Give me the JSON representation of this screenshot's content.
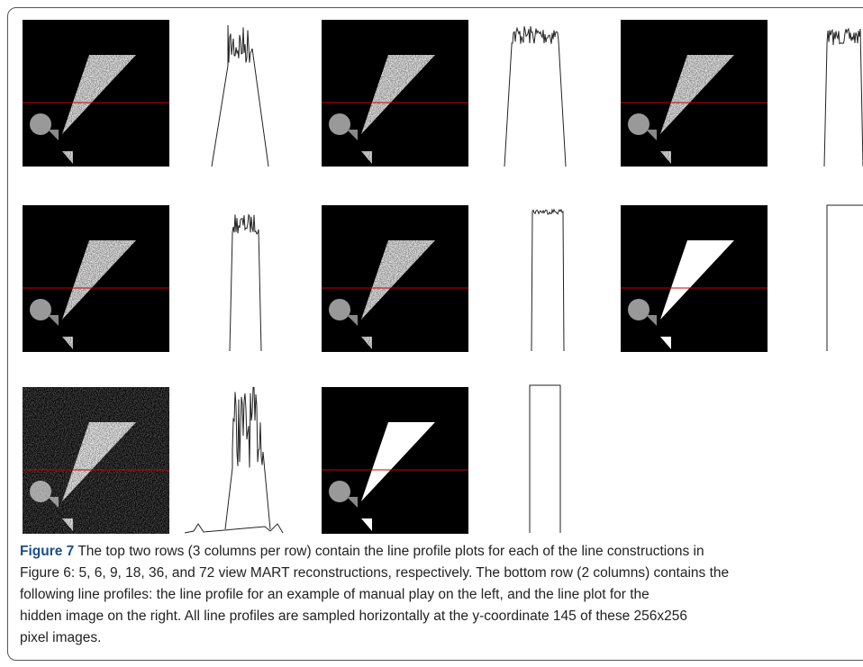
{
  "caption": {
    "label": "Figure 7",
    "lines": [
      " The top two rows (3 columns per row) contain the line profile plots for each of the line constructions in",
      "Figure 6: 5, 6, 9, 18, 36, and 72 view MART reconstructions, respectively. The bottom row (2 columns) contains the",
      "following line profiles: the line profile for an example of manual play on the left, and the line plot for the",
      "hidden image on the right. All line profiles are sampled horizontally at the y-coordinate 145 of these 256x256",
      "pixel images."
    ]
  }
}
